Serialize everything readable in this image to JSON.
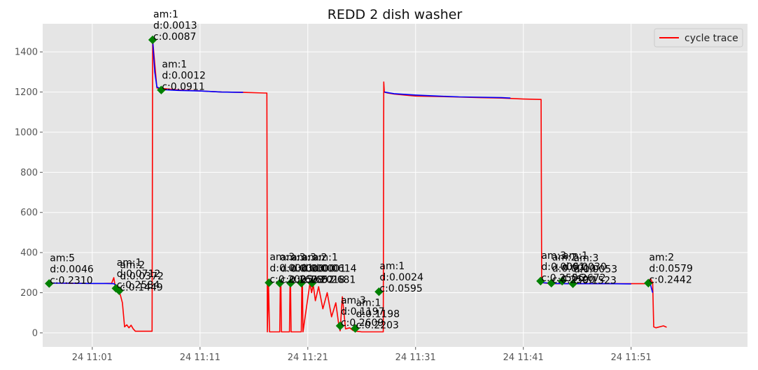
{
  "chart_data": {
    "type": "line",
    "title": "REDD 2 dish washer",
    "xlabel": "",
    "ylabel": "",
    "xlim": [
      -4.6,
      60.8
    ],
    "ylim": [
      -70,
      1540
    ],
    "grid": true,
    "legend": {
      "position": "top-right",
      "entries": [
        "cycle trace"
      ]
    },
    "x_ticks": [
      {
        "value": 0,
        "label": "24 11:01"
      },
      {
        "value": 10,
        "label": "24 11:11"
      },
      {
        "value": 20,
        "label": "24 11:21"
      },
      {
        "value": 30,
        "label": "24 11:31"
      },
      {
        "value": 40,
        "label": "24 11:41"
      },
      {
        "value": 50,
        "label": "24 11:51"
      }
    ],
    "y_ticks": [
      0,
      200,
      400,
      600,
      800,
      1000,
      1200,
      1400
    ],
    "series": [
      {
        "name": "cycle trace",
        "color": "#ff0000",
        "x": [
          -4.0,
          -2.0,
          0.0,
          1.0,
          1.8,
          2.0,
          2.1,
          2.2,
          2.4,
          2.6,
          2.8,
          3.0,
          3.2,
          3.4,
          3.6,
          3.8,
          4.0,
          5.0,
          5.5,
          5.55,
          5.6,
          6.0,
          8.0,
          10.0,
          12.0,
          14.0,
          16.0,
          16.2,
          16.25,
          16.35,
          16.45,
          17.4,
          17.45,
          17.5,
          17.55,
          18.3,
          18.35,
          18.4,
          18.45,
          19.4,
          19.45,
          19.5,
          19.55,
          20.2,
          20.35,
          20.5,
          20.7,
          21.0,
          21.4,
          21.8,
          22.2,
          22.6,
          22.9,
          23.0,
          23.2,
          23.5,
          23.9,
          24.2,
          24.5,
          25.0,
          26.5,
          27.0,
          27.05,
          27.1,
          27.2,
          27.4,
          28.0,
          29.0,
          30.0,
          32.0,
          34.0,
          36.0,
          38.0,
          40.0,
          41.6,
          41.65,
          41.7,
          41.8,
          42.5,
          44.0,
          46.0,
          48.0,
          50.0,
          51.0,
          51.5,
          51.8,
          52.0,
          52.1,
          52.3,
          53.0,
          53.3
        ],
        "values": [
          248,
          247,
          246,
          246,
          247,
          275,
          240,
          220,
          210,
          190,
          150,
          30,
          40,
          25,
          38,
          20,
          8,
          8,
          8,
          8,
          1460,
          1220,
          1210,
          1205,
          1200,
          1198,
          1195,
          1195,
          5,
          250,
          5,
          5,
          250,
          248,
          5,
          5,
          248,
          248,
          5,
          5,
          250,
          250,
          5,
          250,
          200,
          240,
          160,
          230,
          120,
          200,
          80,
          150,
          30,
          10,
          180,
          20,
          25,
          12,
          8,
          5,
          5,
          5,
          1250,
          1200,
          1198,
          1195,
          1190,
          1185,
          1180,
          1178,
          1175,
          1172,
          1170,
          1165,
          1163,
          1163,
          260,
          250,
          245,
          245,
          245,
          245,
          245,
          245,
          245,
          270,
          250,
          30,
          25,
          35,
          28
        ]
      },
      {
        "name": "",
        "color": "#0000ff",
        "x": [
          -4.0,
          -2.0,
          0.0,
          1.0,
          2.0,
          2.5,
          2.7
        ],
        "values": [
          248,
          247,
          246,
          246,
          245,
          225,
          200
        ]
      },
      {
        "name": "",
        "color": "#0000ff",
        "x": [
          5.6,
          5.8,
          6.0,
          6.5,
          8.0,
          10.0,
          12.0,
          14.0
        ],
        "values": [
          1460,
          1300,
          1225,
          1212,
          1208,
          1205,
          1200,
          1198
        ]
      },
      {
        "name": "",
        "color": "#0000ff",
        "x": [
          27.1,
          28.0,
          30.0,
          32.0,
          34.0,
          36.0,
          38.0,
          38.8
        ],
        "values": [
          1200,
          1192,
          1185,
          1180,
          1176,
          1174,
          1172,
          1170
        ]
      },
      {
        "name": "",
        "color": "#0000ff",
        "x": [
          41.8,
          43.0,
          44.0,
          46.0,
          48.0,
          50.0
        ],
        "values": [
          250,
          246,
          245,
          245,
          245,
          244
        ]
      },
      {
        "name": "",
        "color": "#0000ff",
        "x": [
          51.4,
          51.6,
          51.8,
          52.0
        ],
        "values": [
          250,
          248,
          240,
          200
        ]
      }
    ],
    "points": [
      {
        "x": -4.0,
        "y": 246,
        "color": "#008000",
        "label": [
          "am:5",
          "d:0.0046",
          "c:0.2310"
        ]
      },
      {
        "x": 2.2,
        "y": 222,
        "color": "#008000",
        "label": [
          "am:1",
          "d:0.0712",
          "c:0.2584"
        ]
      },
      {
        "x": 2.5,
        "y": 210,
        "color": "#008000",
        "label": [
          "am:2",
          "d:0.0372",
          "c:0.1449"
        ]
      },
      {
        "x": 5.6,
        "y": 1460,
        "color": "#008000",
        "label": [
          "am:1",
          "d:0.0013",
          "c:0.0087"
        ]
      },
      {
        "x": 6.4,
        "y": 1210,
        "color": "#008000",
        "label": [
          "am:1",
          "d:0.0012",
          "c:0.0911"
        ]
      },
      {
        "x": 16.4,
        "y": 250,
        "color": "#008000",
        "label": [
          "am:3",
          "d:0.0001",
          "c:0.2025"
        ]
      },
      {
        "x": 17.4,
        "y": 248,
        "color": "#008000",
        "label": [
          "am:3",
          "d:0.0000",
          "c:0.1678"
        ]
      },
      {
        "x": 18.4,
        "y": 248,
        "color": "#008000",
        "label": [
          "am:3",
          "d:0.0000",
          "c:0.1652"
        ]
      },
      {
        "x": 19.4,
        "y": 248,
        "color": "#008000",
        "label": [
          "am:2",
          "d:0.0001",
          "c:0.2018"
        ]
      },
      {
        "x": 20.4,
        "y": 248,
        "color": "#008000",
        "label": [
          "am:1",
          "d:0.0614",
          "c:0.2681"
        ]
      },
      {
        "x": 23.0,
        "y": 35,
        "color": "#008000",
        "label": [
          "am:3",
          "d:0.1197",
          "c:0.2609"
        ]
      },
      {
        "x": 24.4,
        "y": 22,
        "color": "#008000",
        "label": [
          "am:1",
          "d:0.1198",
          "c:0.2203"
        ]
      },
      {
        "x": 26.6,
        "y": 205,
        "color": "#008000",
        "label": [
          "am:1",
          "d:0.0024",
          "c:0.0595"
        ]
      },
      {
        "x": 41.6,
        "y": 258,
        "color": "#008000",
        "label": [
          "am:3",
          "d:0.0061",
          "c:0.2556"
        ]
      },
      {
        "x": 42.6,
        "y": 248,
        "color": "#008000",
        "label": [
          "am:2",
          "d:0.0010",
          "c:0.2590"
        ]
      },
      {
        "x": 43.6,
        "y": 258,
        "color": "#008000",
        "label": [
          "am:1",
          "d:0.0030",
          "c:0.2672"
        ]
      },
      {
        "x": 44.6,
        "y": 245,
        "color": "#008000",
        "label": [
          "am:3",
          "d:0.0053",
          "c:0.1523"
        ]
      },
      {
        "x": 51.6,
        "y": 248,
        "color": "#008000",
        "label": [
          "am:2",
          "d:0.0579",
          "c:0.2442"
        ]
      }
    ]
  }
}
